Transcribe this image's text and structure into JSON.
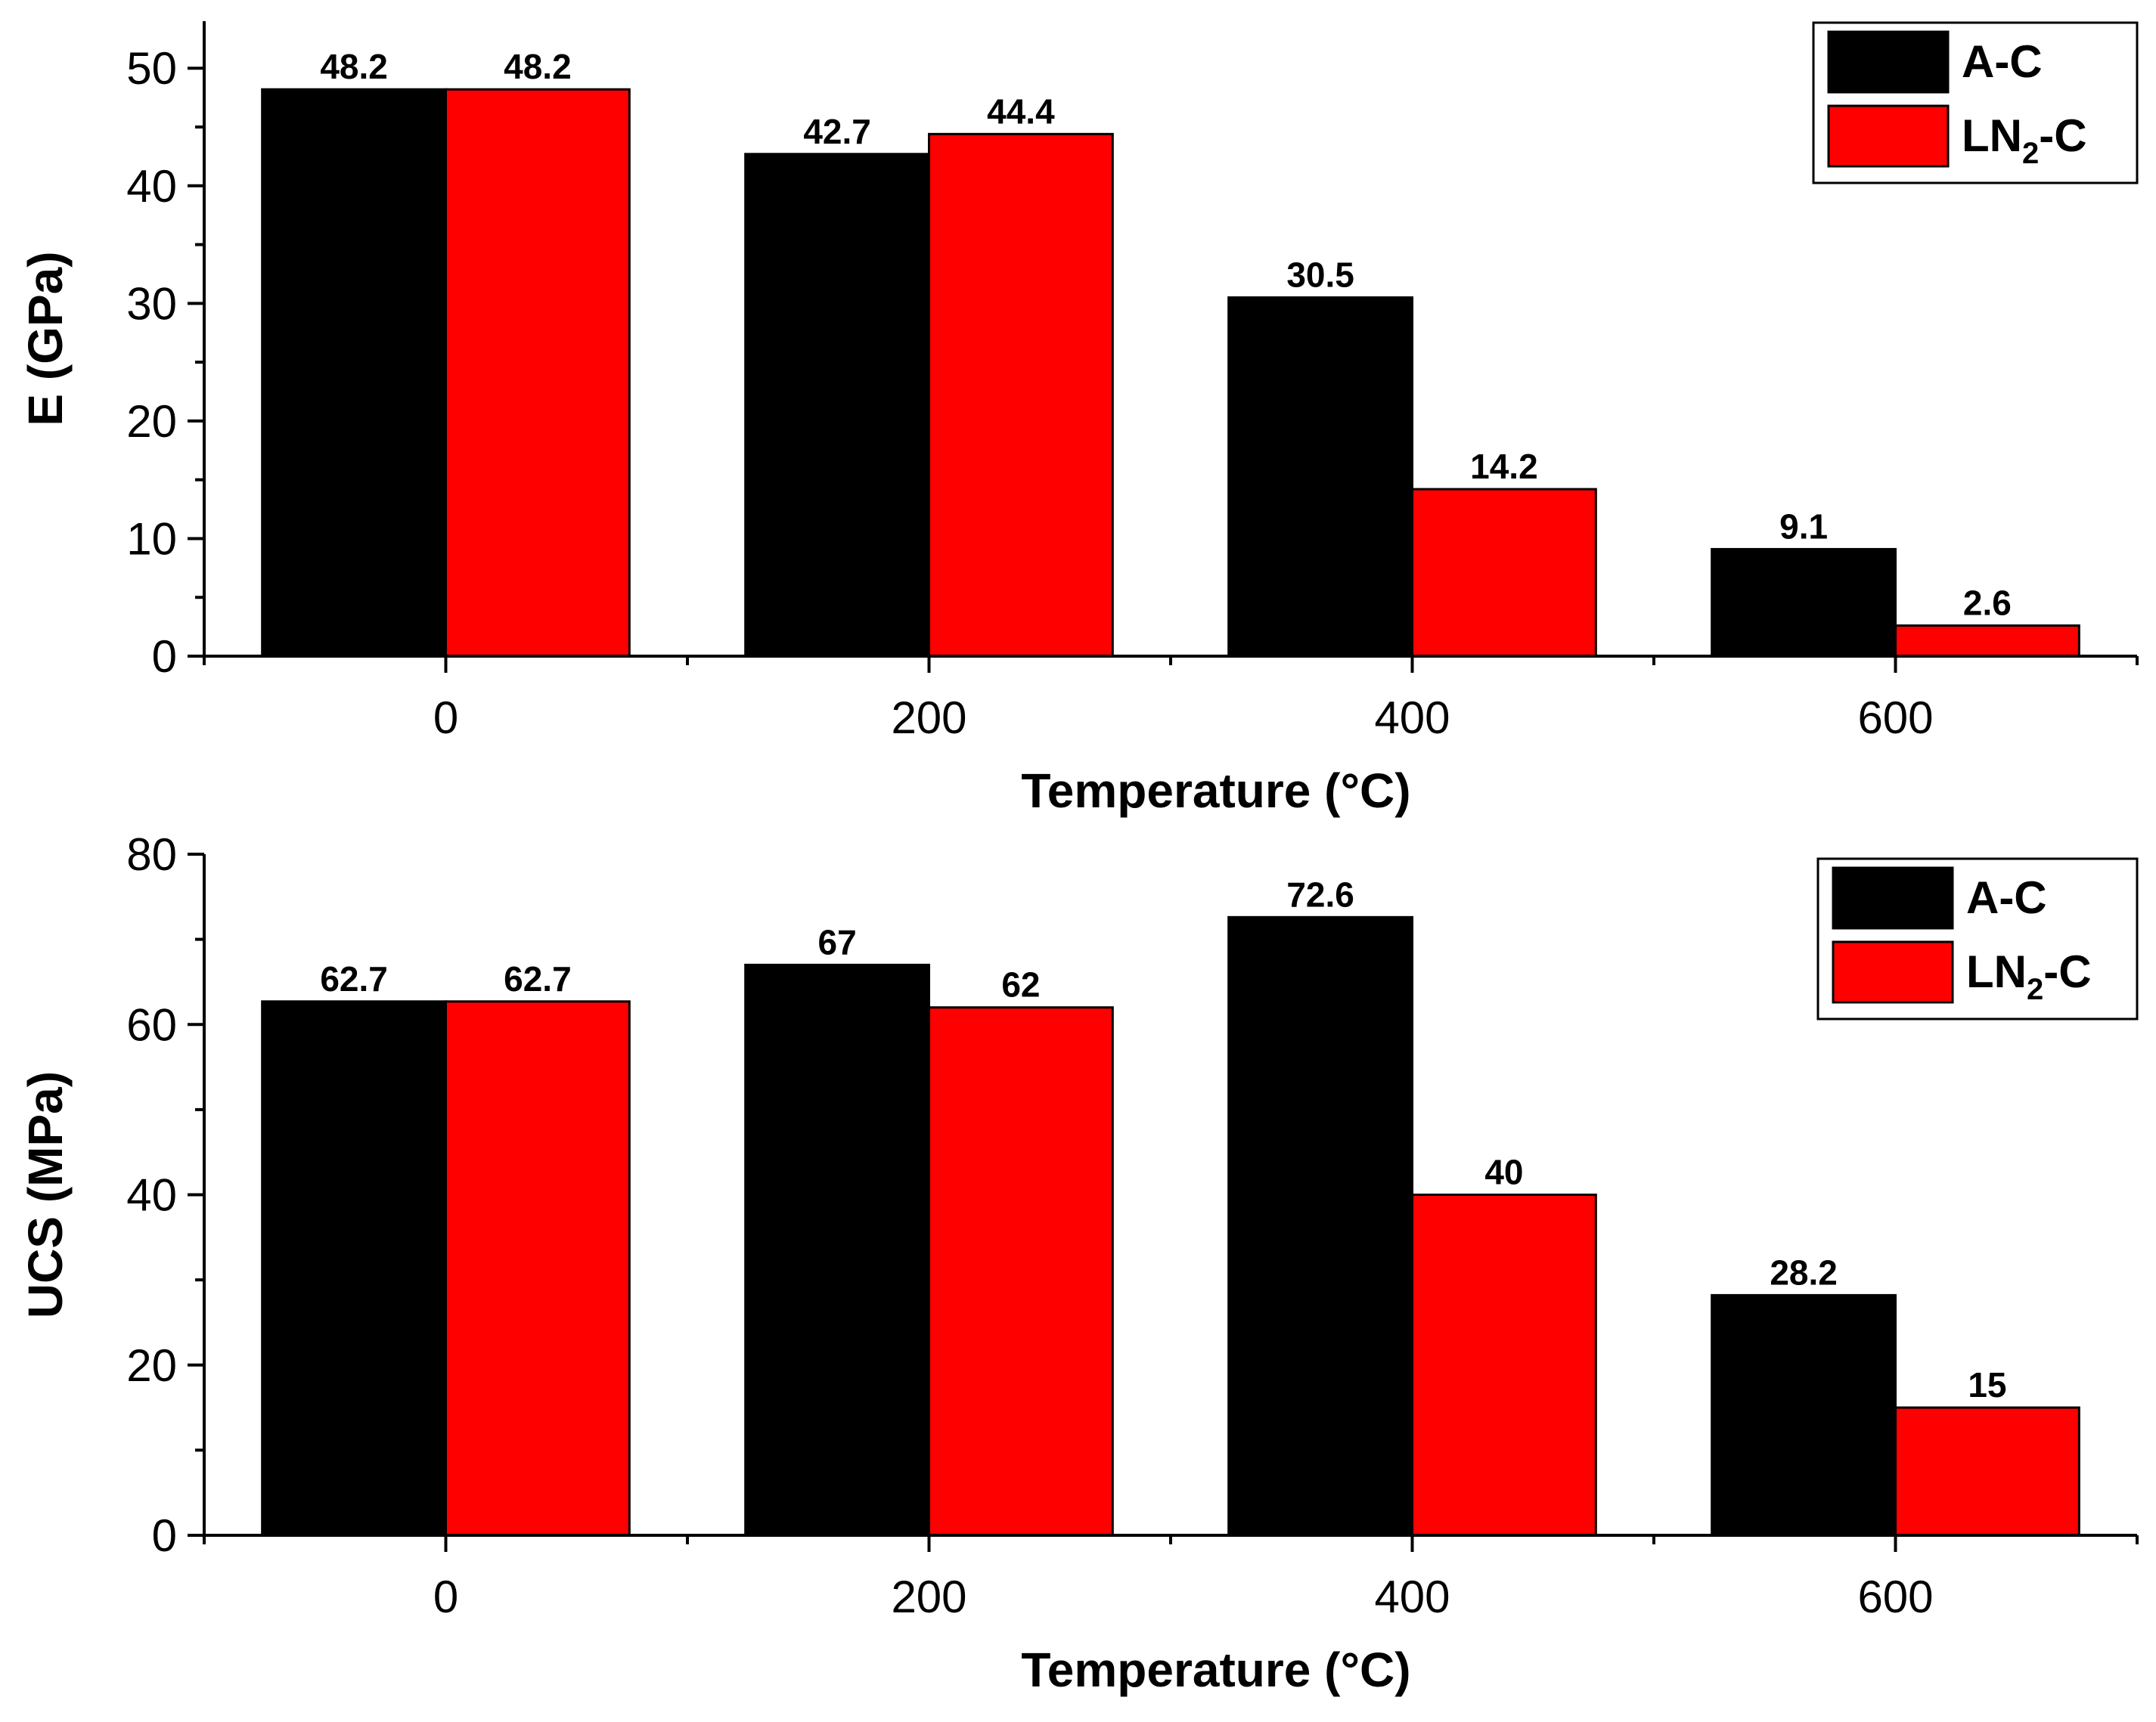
{
  "chart_data": [
    {
      "type": "bar",
      "xlabel": "Temperature (°C)",
      "ylabel": "E (GPa)",
      "ylim": [
        0,
        54
      ],
      "yticks": [
        0,
        10,
        20,
        30,
        40,
        50
      ],
      "xlim": [
        -100,
        700
      ],
      "x": [
        0,
        200,
        400,
        600
      ],
      "x_tick_labels": [
        "0",
        "200",
        "400",
        "600"
      ],
      "series": [
        {
          "name": "A-C",
          "color": "#000000",
          "values": [
            48.2,
            42.7,
            30.5,
            9.1
          ],
          "labels": [
            "48.2",
            "42.7",
            "30.5",
            "9.1"
          ]
        },
        {
          "name": "LN2-C",
          "color": "#ff0000",
          "values": [
            48.2,
            44.4,
            14.2,
            2.6
          ],
          "labels": [
            "48.2",
            "44.4",
            "14.2",
            "2.6"
          ]
        }
      ],
      "legend": {
        "position": "top-right",
        "entries": [
          {
            "base": "A-C",
            "sub": "",
            "tail": ""
          },
          {
            "base": "LN",
            "sub": "2",
            "tail": "-C"
          }
        ]
      }
    },
    {
      "type": "bar",
      "xlabel": "Temperature (°C)",
      "ylabel": "UCS (MPa)",
      "ylim": [
        0,
        80
      ],
      "yticks": [
        0,
        20,
        40,
        60,
        80
      ],
      "xlim": [
        -100,
        700
      ],
      "x": [
        0,
        200,
        400,
        600
      ],
      "x_tick_labels": [
        "0",
        "200",
        "400",
        "600"
      ],
      "series": [
        {
          "name": "A-C",
          "color": "#000000",
          "values": [
            62.7,
            67,
            72.6,
            28.2
          ],
          "labels": [
            "62.7",
            "67",
            "72.6",
            "28.2"
          ]
        },
        {
          "name": "LN2-C",
          "color": "#ff0000",
          "values": [
            62.7,
            62,
            40,
            15
          ],
          "labels": [
            "62.7",
            "62",
            "40",
            "15"
          ]
        }
      ],
      "legend": {
        "position": "top-right",
        "entries": [
          {
            "base": "A-C",
            "sub": "",
            "tail": ""
          },
          {
            "base": "LN",
            "sub": "2",
            "tail": "-C"
          }
        ]
      }
    }
  ]
}
